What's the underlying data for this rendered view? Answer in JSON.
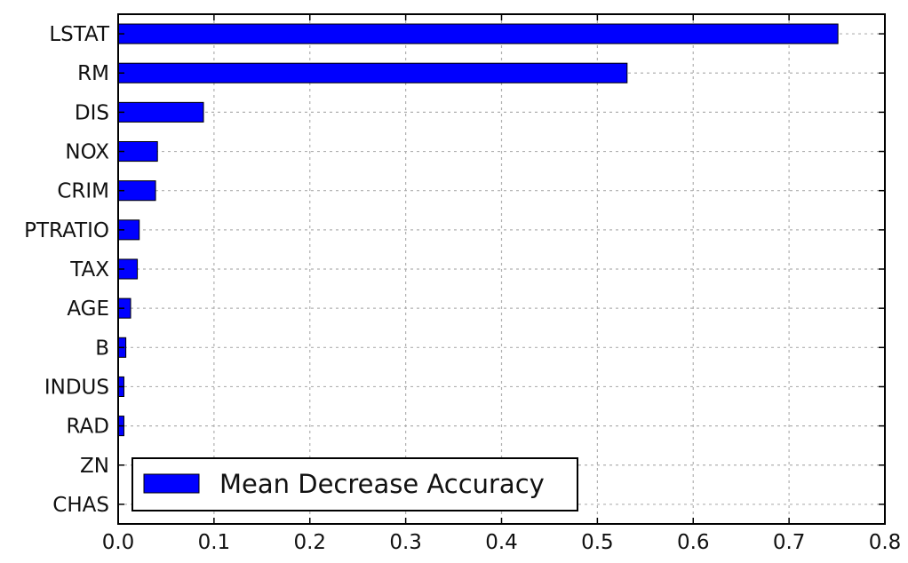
{
  "chart_data": {
    "type": "bar",
    "orientation": "horizontal",
    "categories": [
      "LSTAT",
      "RM",
      "DIS",
      "NOX",
      "CRIM",
      "PTRATIO",
      "TAX",
      "AGE",
      "B",
      "INDUS",
      "RAD",
      "ZN",
      "CHAS"
    ],
    "series": [
      {
        "name": "Mean Decrease Accuracy",
        "values": [
          0.751,
          0.531,
          0.089,
          0.041,
          0.039,
          0.022,
          0.02,
          0.013,
          0.008,
          0.006,
          0.006,
          0.0,
          0.0
        ]
      }
    ],
    "xlim": [
      0,
      0.8
    ],
    "x_ticks": [
      "0.0",
      "0.1",
      "0.2",
      "0.3",
      "0.4",
      "0.5",
      "0.6",
      "0.7",
      "0.8"
    ],
    "grid": true,
    "legend_position": "lower-left",
    "colors": {
      "bar_fill": "#0000ff",
      "bar_edge": "#000000",
      "grid": "#b0b0b0"
    }
  }
}
